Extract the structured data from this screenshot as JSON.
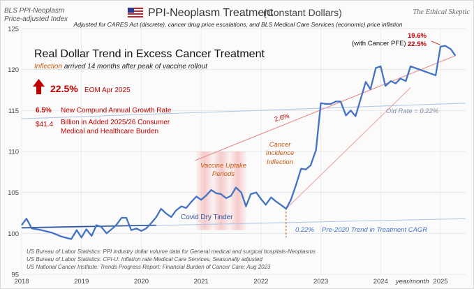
{
  "colors": {
    "series": "#4472c4",
    "trend_red": "#e88a8a",
    "trend_blue": "#b4c7e7",
    "headline": "#c00000",
    "accent_orange": "#c55a11",
    "note_blue": "#2f5597",
    "grey_text": "#595959",
    "grid": "#e3e3e3",
    "vaccine_band": "#f4b6b6"
  },
  "header": {
    "source_line1": "BLS PPI-Neoplasm",
    "source_line2": "Price-adjusted Index",
    "flag_icon": "us-flag-icon",
    "title_main": "PPI-Neoplasm Treatment",
    "title_paren": "(Constant Dollars)",
    "subtitle": "Adjusted for CARES Act (discrete), cancer drug price escalations, and BLS Medical Care Services (economic) price inflation",
    "brand": "The Ethical Skeptic"
  },
  "headline": {
    "title": "Real Dollar Trend in Excess Cancer Treatment",
    "inflection_word": "Inflection",
    "inflection_rest": "arrived 14 months after peak of vaccine rollout",
    "arrow_icon": "up-arrow-icon",
    "pct": "22.5%",
    "pct_note": "EOM Apr 2025",
    "cagr_value": "6.5%",
    "cagr_label": "New Compund Annual Growth Rate",
    "cost_value": "$41.4",
    "cost_line1": "Billion in Added 2025/26 Consumer",
    "cost_line2": "Medical and Healthcare Burden"
  },
  "sources": [
    "US Bureau of Labor Statistics: PPI industry dollar volume data for General medical and surgical hospitals-Neoplasms",
    "US Bureau of Labor Statistics: CPI-U: Inflation rate Medical Care Services, Seasonally adjusted",
    "US National Cancer Institute: Trends Progress Report: Financial Burden of Cancer Care; Aug 2023"
  ],
  "chart_data": {
    "type": "line",
    "x_unit": "year/month",
    "x_ticks": [
      "2018",
      "2019",
      "2020",
      "2021",
      "2022",
      "2023",
      "2024",
      "2025"
    ],
    "x_axis_label": "year/month",
    "xlim": [
      2018.0,
      2025.42
    ],
    "ylim": [
      95,
      125
    ],
    "y_ticks": [
      95,
      100,
      105,
      110,
      115,
      120,
      125
    ],
    "grid": true,
    "series": [
      {
        "points": [
          [
            2018.0,
            101.0
          ],
          [
            2018.08,
            101.8
          ],
          [
            2018.17,
            100.6
          ],
          [
            2018.33,
            100.4
          ],
          [
            2018.5,
            100.1
          ],
          [
            2018.67,
            99.6
          ],
          [
            2018.83,
            99.3
          ],
          [
            2018.92,
            100.4
          ],
          [
            2019.0,
            99.5
          ],
          [
            2019.08,
            100.5
          ],
          [
            2019.17,
            99.7
          ],
          [
            2019.25,
            101.0
          ],
          [
            2019.33,
            100.8
          ],
          [
            2019.42,
            100.0
          ],
          [
            2019.5,
            100.5
          ],
          [
            2019.58,
            101.0
          ],
          [
            2019.67,
            101.9
          ],
          [
            2019.75,
            101.9
          ],
          [
            2019.83,
            100.4
          ],
          [
            2019.92,
            100.6
          ],
          [
            2020.0,
            100.3
          ],
          [
            2020.08,
            100.6
          ],
          [
            2020.17,
            101.3
          ],
          [
            2020.25,
            102.0
          ],
          [
            2020.33,
            103.0
          ],
          [
            2020.42,
            102.4
          ],
          [
            2020.5,
            102.0
          ],
          [
            2020.58,
            102.8
          ],
          [
            2020.67,
            103.3
          ],
          [
            2020.75,
            103.1
          ],
          [
            2020.83,
            103.8
          ],
          [
            2020.92,
            104.5
          ],
          [
            2021.0,
            104.1
          ],
          [
            2021.08,
            104.6
          ],
          [
            2021.17,
            105.3
          ],
          [
            2021.25,
            104.9
          ],
          [
            2021.33,
            104.8
          ],
          [
            2021.42,
            104.3
          ],
          [
            2021.5,
            104.6
          ],
          [
            2021.58,
            105.6
          ],
          [
            2021.67,
            105.0
          ],
          [
            2021.75,
            103.3
          ],
          [
            2021.83,
            104.8
          ],
          [
            2021.92,
            105.0
          ],
          [
            2022.0,
            104.2
          ],
          [
            2022.08,
            103.5
          ],
          [
            2022.17,
            104.4
          ],
          [
            2022.25,
            103.9
          ],
          [
            2022.33,
            103.5
          ],
          [
            2022.42,
            103.0
          ],
          [
            2022.5,
            104.1
          ],
          [
            2022.58,
            105.8
          ],
          [
            2022.67,
            107.9
          ],
          [
            2022.75,
            107.8
          ],
          [
            2022.83,
            108.3
          ],
          [
            2022.92,
            110.2
          ],
          [
            2023.0,
            115.9
          ],
          [
            2023.08,
            115.8
          ],
          [
            2023.17,
            115.8
          ],
          [
            2023.25,
            116.1
          ],
          [
            2023.33,
            116.1
          ],
          [
            2023.42,
            114.4
          ],
          [
            2023.5,
            115.0
          ],
          [
            2023.58,
            114.3
          ],
          [
            2023.67,
            116.5
          ],
          [
            2023.75,
            118.5
          ],
          [
            2023.83,
            117.6
          ],
          [
            2023.92,
            120.2
          ],
          [
            2024.0,
            120.4
          ],
          [
            2024.08,
            118.0
          ],
          [
            2024.17,
            118.6
          ],
          [
            2024.25,
            118.3
          ],
          [
            2024.33,
            118.9
          ],
          [
            2024.42,
            118.6
          ],
          [
            2024.5,
            120.4
          ],
          [
            2024.92,
            119.3
          ],
          [
            2025.0,
            122.8
          ],
          [
            2025.08,
            122.9
          ],
          [
            2025.17,
            122.5
          ],
          [
            2025.25,
            121.7
          ]
        ]
      }
    ],
    "trend_lines": [
      {
        "label": "2.6%",
        "color": "#e88a8a",
        "from": [
          2020.9,
          108.9
        ],
        "to": [
          2025.25,
          121.7
        ]
      },
      {
        "label": "Old Rate = 0.22%",
        "color": "#b4c7e7",
        "from": [
          2018.0,
          114.0
        ],
        "to": [
          2025.42,
          115.9
        ]
      },
      {
        "label": "0.22%",
        "color": "#b4c7e7",
        "from": [
          2018.0,
          100.6
        ],
        "to": [
          2025.42,
          101.8
        ]
      },
      {
        "label": "",
        "color": "#f0a5a5",
        "from": [
          2022.42,
          103.0
        ],
        "to": [
          2024.5,
          117.8
        ]
      },
      {
        "label": "",
        "color": "#2f5597",
        "from": [
          2018.0,
          100.7
        ],
        "to": [
          2020.25,
          101.0
        ]
      }
    ],
    "annotations": {
      "vaccine_period": {
        "label_line1": "Vaccine Uptake",
        "label_line2": "Periods",
        "x_start": 2020.92,
        "x_end": 2021.75
      },
      "cancer_inflection": {
        "line1": "Cancer",
        "line2": "Incidence",
        "line3": "Inflection",
        "x": 2022.42
      },
      "covid": "Covid Dry Tinder",
      "pre2020": "Pre-2020 Trend in Treatment CAGR",
      "cancer_pfe_label": "(with Cancer PFE)",
      "top_pct_1": "19.6%",
      "top_pct_2": "22.5%"
    }
  }
}
